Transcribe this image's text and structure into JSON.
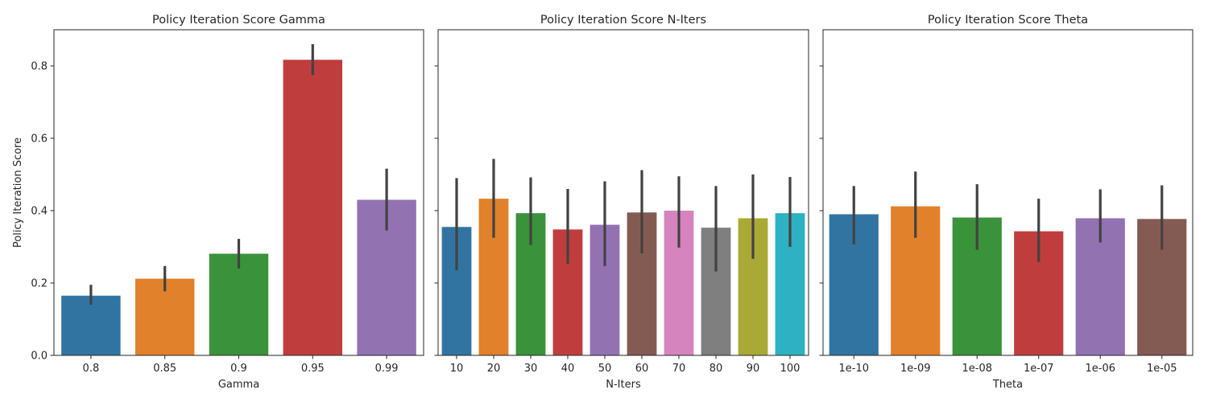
{
  "chart_data": [
    {
      "type": "bar",
      "title": "Policy Iteration Score Gamma",
      "xlabel": "Gamma",
      "ylabel": "Policy Iteration Score",
      "ylim": [
        0,
        0.9
      ],
      "yticks": [
        0.0,
        0.2,
        0.4,
        0.6,
        0.8
      ],
      "ytick_labels": [
        "0.0",
        "0.2",
        "0.4",
        "0.6",
        "0.8"
      ],
      "categories": [
        "0.8",
        "0.85",
        "0.9",
        "0.95",
        "0.99"
      ],
      "values": [
        0.165,
        0.212,
        0.281,
        0.817,
        0.43
      ],
      "error_low": [
        0.14,
        0.177,
        0.24,
        0.775,
        0.345
      ],
      "error_high": [
        0.195,
        0.247,
        0.322,
        0.86,
        0.516
      ],
      "colors": [
        "#3274a1",
        "#e1812c",
        "#3a923a",
        "#c03d3e",
        "#9372b2"
      ]
    },
    {
      "type": "bar",
      "title": "Policy Iteration Score N-Iters",
      "xlabel": "N-Iters",
      "ylabel": "",
      "ylim": [
        0,
        0.9
      ],
      "yticks": [
        0.0,
        0.2,
        0.4,
        0.6,
        0.8
      ],
      "ytick_labels": [
        "",
        "",
        "",
        "",
        ""
      ],
      "categories": [
        "10",
        "20",
        "30",
        "40",
        "50",
        "60",
        "70",
        "80",
        "90",
        "100"
      ],
      "values": [
        0.355,
        0.433,
        0.393,
        0.348,
        0.361,
        0.395,
        0.4,
        0.353,
        0.379,
        0.393
      ],
      "error_low": [
        0.235,
        0.325,
        0.305,
        0.253,
        0.247,
        0.282,
        0.298,
        0.232,
        0.267,
        0.3
      ],
      "error_high": [
        0.49,
        0.543,
        0.492,
        0.46,
        0.481,
        0.512,
        0.495,
        0.468,
        0.5,
        0.493
      ],
      "colors": [
        "#3274a1",
        "#e1812c",
        "#3a923a",
        "#c03d3e",
        "#9372b2",
        "#845b53",
        "#d684bd",
        "#7f7f7f",
        "#a9aa35",
        "#2eb1c2"
      ]
    },
    {
      "type": "bar",
      "title": "Policy Iteration Score Theta",
      "xlabel": "Theta",
      "ylabel": "",
      "ylim": [
        0,
        0.9
      ],
      "yticks": [
        0.0,
        0.2,
        0.4,
        0.6,
        0.8
      ],
      "ytick_labels": [
        "",
        "",
        "",
        "",
        ""
      ],
      "categories": [
        "1e-10",
        "1e-09",
        "1e-08",
        "1e-07",
        "1e-06",
        "1e-05"
      ],
      "values": [
        0.39,
        0.412,
        0.381,
        0.343,
        0.379,
        0.377
      ],
      "error_low": [
        0.307,
        0.325,
        0.292,
        0.258,
        0.312,
        0.292
      ],
      "error_high": [
        0.468,
        0.508,
        0.473,
        0.433,
        0.459,
        0.47
      ],
      "colors": [
        "#3274a1",
        "#e1812c",
        "#3a923a",
        "#c03d3e",
        "#9372b2",
        "#845b53"
      ]
    }
  ]
}
